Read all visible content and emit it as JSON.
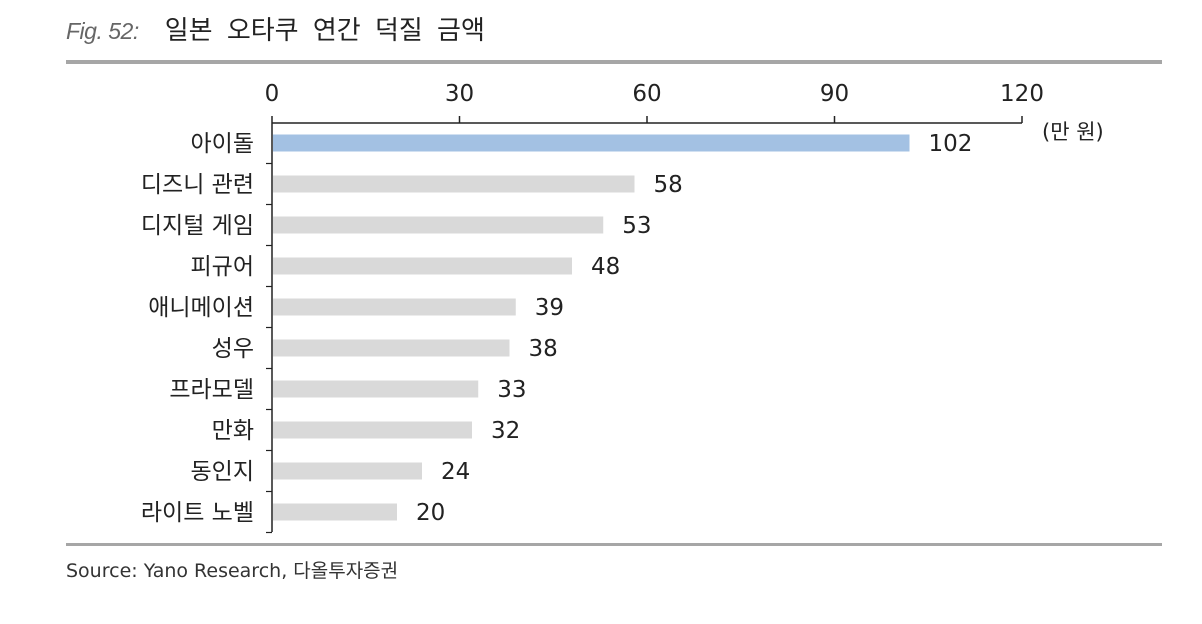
{
  "figure": {
    "label": "Fig. 52:",
    "title": "일본 오타쿠 연간 덕질 금액"
  },
  "source": "Source: Yano Research, 다올투자증권",
  "chart_data": {
    "type": "bar",
    "orientation": "horizontal",
    "title": "일본 오타쿠 연간 덕질 금액",
    "unit": "(만 원)",
    "categories": [
      "아이돌",
      "디즈니 관련",
      "디지털 게임",
      "피규어",
      "애니메이션",
      "성우",
      "프라모델",
      "만화",
      "동인지",
      "라이트 노벨"
    ],
    "values": [
      102,
      58,
      53,
      48,
      39,
      38,
      33,
      32,
      24,
      20
    ],
    "xlim": [
      0,
      120
    ],
    "ticks": [
      0,
      30,
      60,
      90,
      120
    ],
    "grid": false,
    "highlight_index": 0,
    "colors": {
      "highlight": "#a3c1e3",
      "default": "#d9d9d9",
      "axis": "#222222"
    }
  }
}
